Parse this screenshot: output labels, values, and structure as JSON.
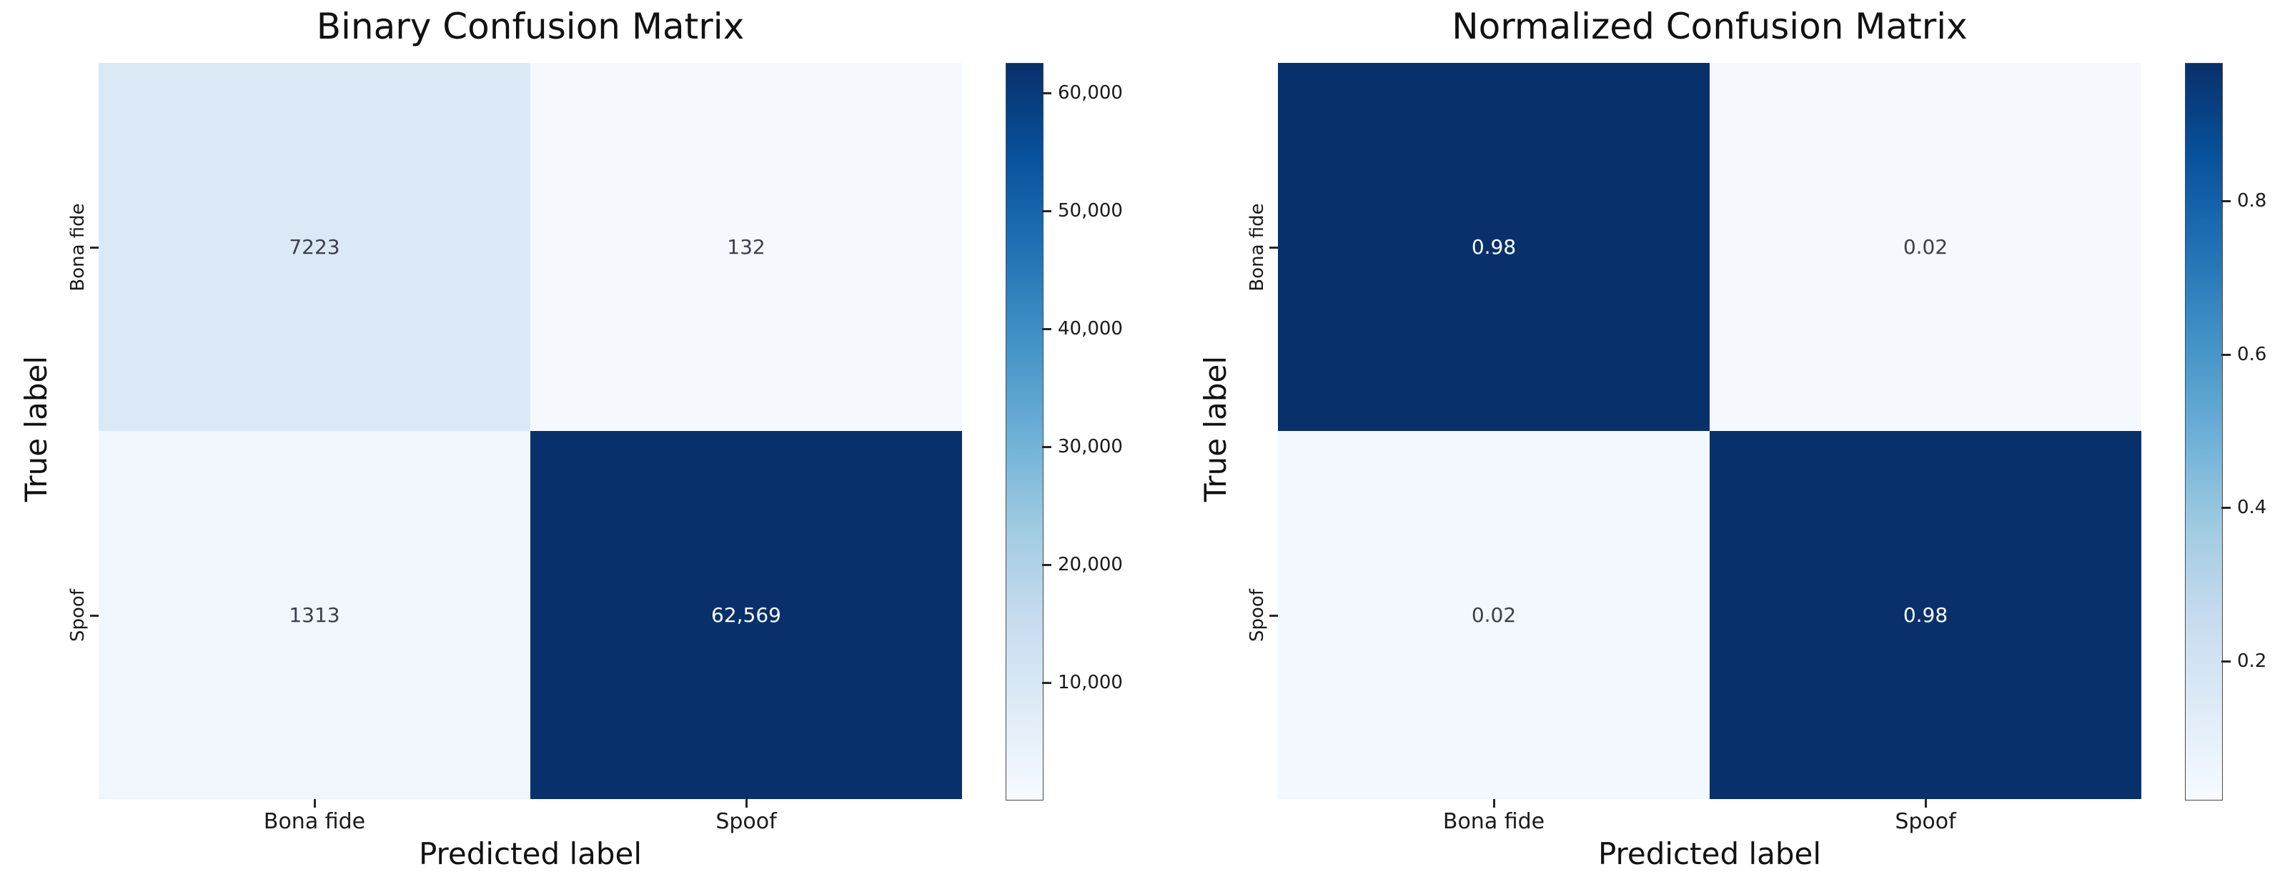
{
  "figure": {
    "background": "#ffffff"
  },
  "colormap": {
    "name": "Blues",
    "stops": [
      "#08306b",
      "#08519c",
      "#2171b5",
      "#4292c6",
      "#6baed6",
      "#9ecae1",
      "#c6dbef",
      "#deebf7",
      "#f7fbff"
    ]
  },
  "chart_data": [
    {
      "type": "heatmap",
      "title": "Binary Confusion Matrix",
      "xlabel": "Predicted label",
      "ylabel": "True label",
      "x_tick_labels": [
        "Bona fide",
        "Spoof"
      ],
      "y_tick_labels": [
        "Bona fide",
        "Spoof"
      ],
      "rows": [
        "Bona fide",
        "Spoof"
      ],
      "columns": [
        "Bona fide",
        "Spoof"
      ],
      "matrix": [
        [
          7223,
          132
        ],
        [
          1313,
          62569
        ]
      ],
      "cell_labels": [
        [
          "7223",
          "132"
        ],
        [
          "1313",
          "62,569"
        ]
      ],
      "cell_colors": [
        [
          "#dbe9f6",
          "#f5f9fe"
        ],
        [
          "#f0f6fc",
          "#08306b"
        ]
      ],
      "cell_text_colors": [
        [
          "#3a3f4a",
          "#3a3f4a"
        ],
        [
          "#3a3f4a",
          "#ffffff"
        ]
      ],
      "colorbar": {
        "vmin": 132,
        "vmax": 62569,
        "ticks": [
          {
            "value": 60000,
            "label": "60,000"
          },
          {
            "value": 50000,
            "label": "50,000"
          },
          {
            "value": 40000,
            "label": "40,000"
          },
          {
            "value": 30000,
            "label": "30,000"
          },
          {
            "value": 20000,
            "label": "20,000"
          },
          {
            "value": 10000,
            "label": "10,000"
          }
        ]
      }
    },
    {
      "type": "heatmap",
      "title": "Normalized Confusion Matrix",
      "xlabel": "Predicted label",
      "ylabel": "True label",
      "x_tick_labels": [
        "Bona fide",
        "Spoof"
      ],
      "y_tick_labels": [
        "Bona fide",
        "Spoof"
      ],
      "rows": [
        "Bona fide",
        "Spoof"
      ],
      "columns": [
        "Bona fide",
        "Spoof"
      ],
      "matrix": [
        [
          0.98,
          0.02
        ],
        [
          0.02,
          0.98
        ]
      ],
      "cell_labels": [
        [
          "0.98",
          "0.02"
        ],
        [
          "0.02",
          "0.98"
        ]
      ],
      "cell_colors": [
        [
          "#08306b",
          "#f5f9fe"
        ],
        [
          "#f2f8fd",
          "#08306b"
        ]
      ],
      "cell_text_colors": [
        [
          "#ffffff",
          "#3a3f4a"
        ],
        [
          "#3a3f4a",
          "#ffffff"
        ]
      ],
      "colorbar": {
        "vmin": 0.02,
        "vmax": 0.98,
        "ticks": [
          {
            "value": 0.8,
            "label": "0.8"
          },
          {
            "value": 0.6,
            "label": "0.6"
          },
          {
            "value": 0.4,
            "label": "0.4"
          },
          {
            "value": 0.2,
            "label": "0.2"
          }
        ]
      }
    }
  ]
}
